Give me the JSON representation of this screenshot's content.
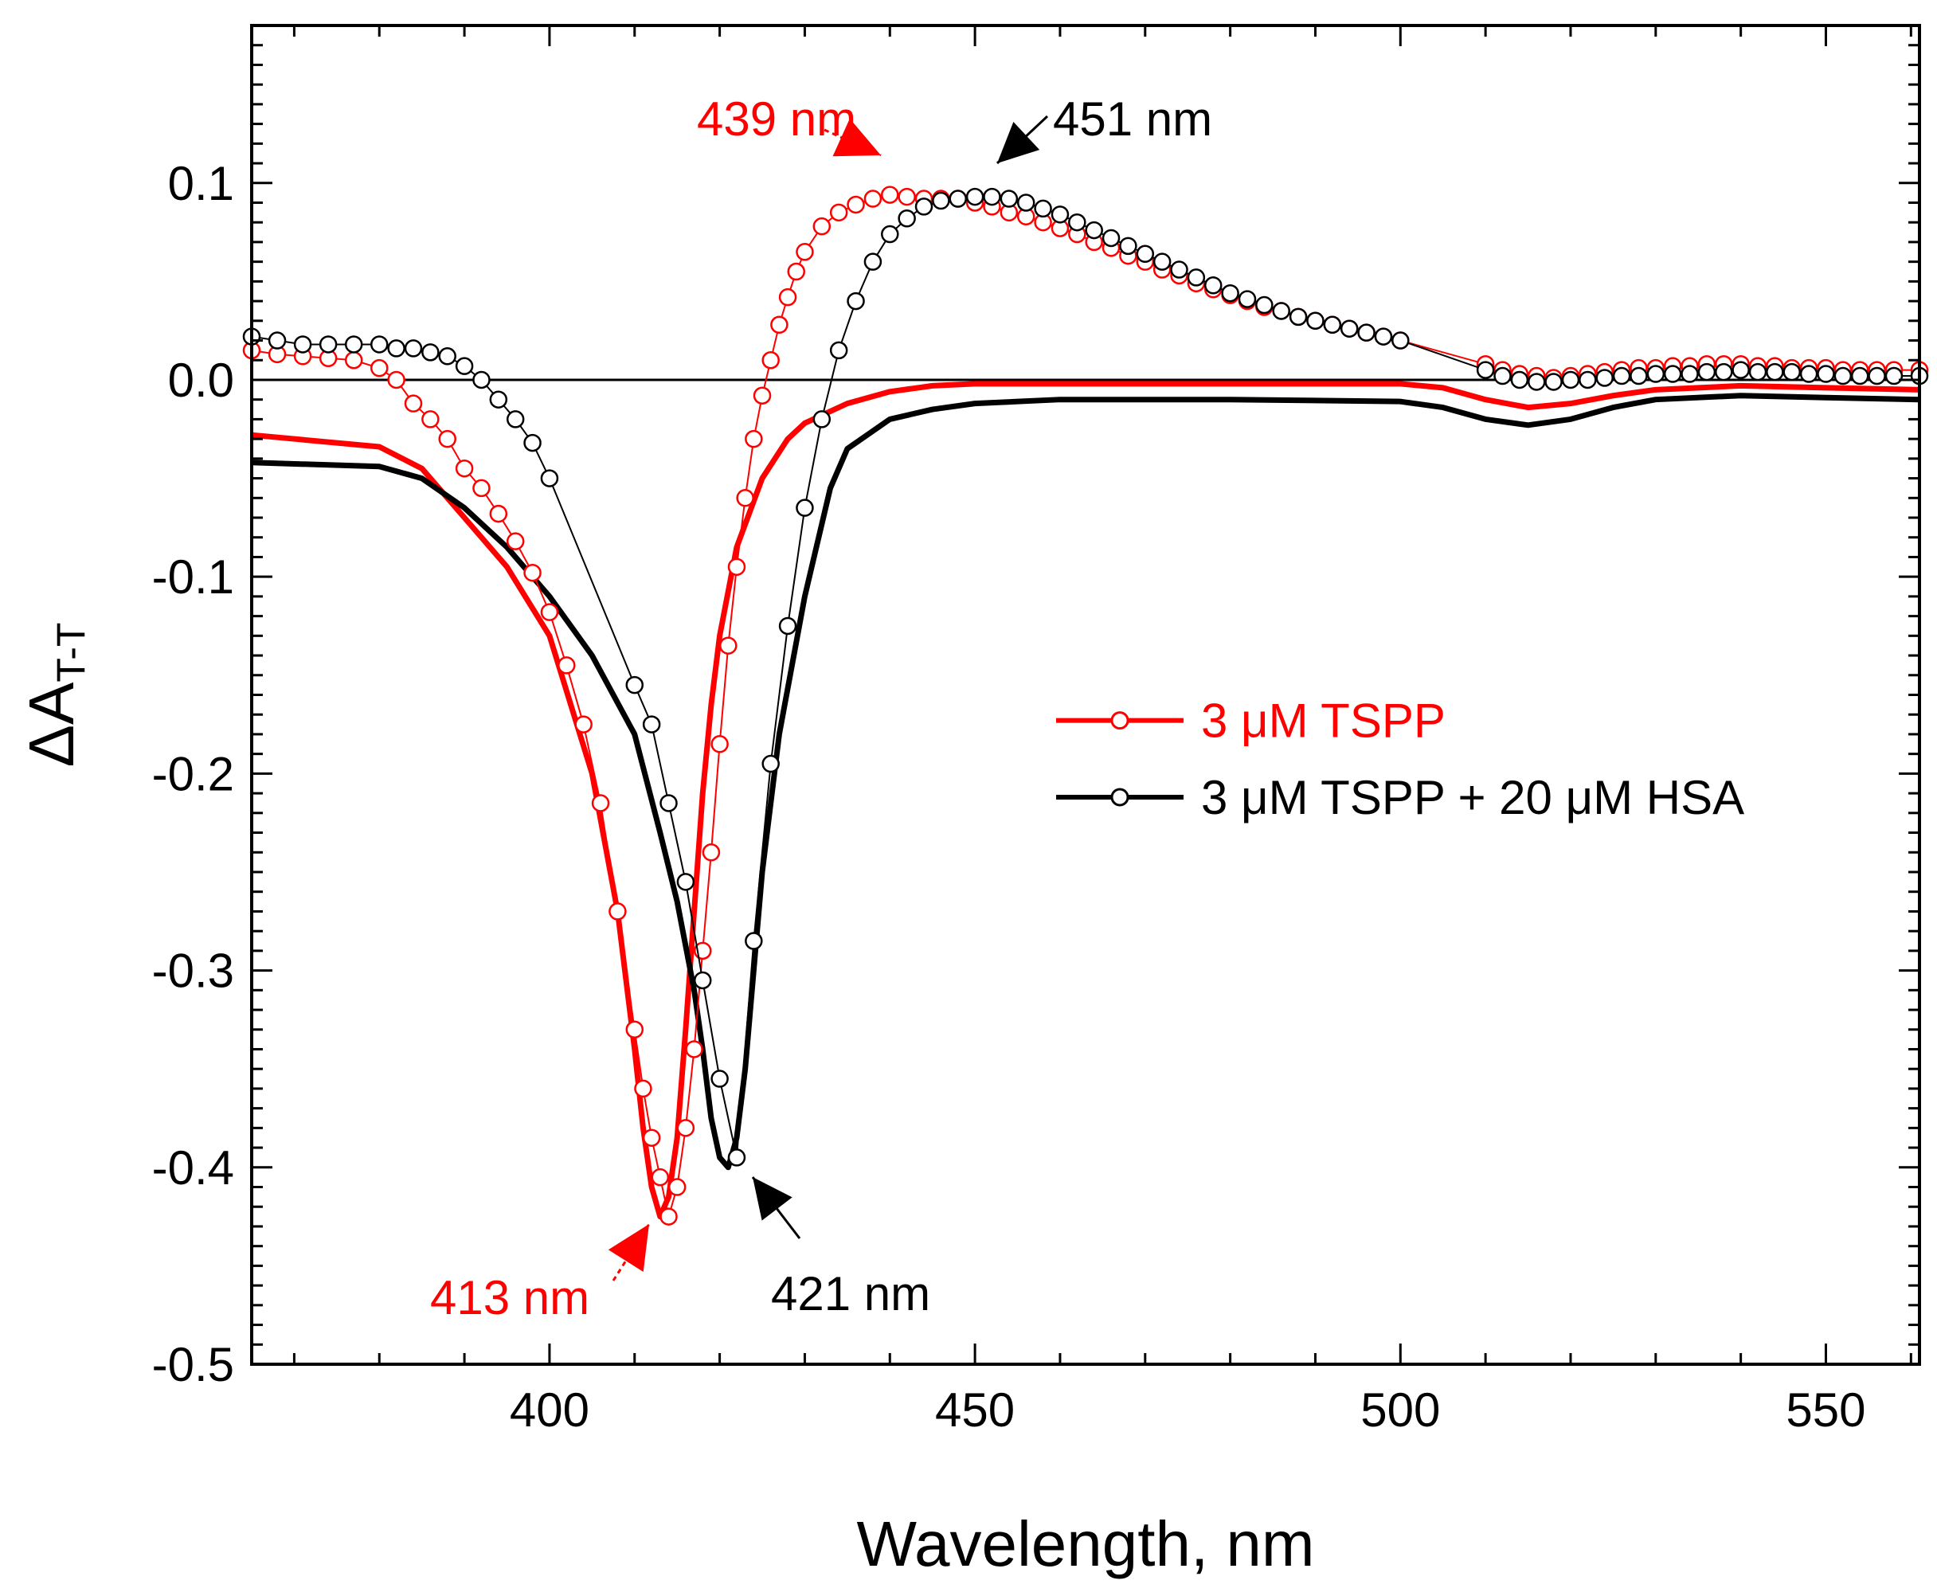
{
  "chart_data": {
    "type": "line",
    "xlabel": "Wavelength, nm",
    "ylabel_main": "ΔA",
    "ylabel_sub": "T-T",
    "xlim": [
      365,
      561
    ],
    "ylim": [
      -0.5,
      0.18
    ],
    "xticks": [
      400,
      450,
      500,
      550
    ],
    "yticks": [
      -0.5,
      -0.4,
      -0.3,
      -0.2,
      -0.1,
      0.0,
      0.1
    ],
    "xtick_labels": [
      "400",
      "450",
      "500",
      "550"
    ],
    "ytick_labels": [
      "-0.5",
      "-0.4",
      "-0.3",
      "-0.2",
      "-0.1",
      "0.0",
      "0.1"
    ],
    "grid": false,
    "legend_position": "right-center",
    "colors": {
      "tspp": "#ff0000",
      "hsa": "#000000",
      "zero_line": "#000000"
    },
    "series": [
      {
        "name": "3 μM TSPP (solid)",
        "style": "solid",
        "color": "#ff0000",
        "x": [
          365,
          380,
          385,
          390,
          395,
          400,
          405,
          408,
          410,
          411,
          412,
          413,
          414,
          415,
          416,
          417,
          418,
          419,
          420,
          422,
          425,
          428,
          430,
          435,
          440,
          445,
          450,
          460,
          480,
          500,
          505,
          510,
          515,
          520,
          525,
          530,
          540,
          550,
          561
        ],
        "y": [
          -0.028,
          -0.034,
          -0.045,
          -0.07,
          -0.095,
          -0.13,
          -0.2,
          -0.27,
          -0.34,
          -0.38,
          -0.41,
          -0.425,
          -0.415,
          -0.385,
          -0.33,
          -0.27,
          -0.21,
          -0.165,
          -0.13,
          -0.085,
          -0.05,
          -0.03,
          -0.022,
          -0.012,
          -0.006,
          -0.003,
          -0.002,
          -0.002,
          -0.002,
          -0.002,
          -0.004,
          -0.01,
          -0.014,
          -0.012,
          -0.008,
          -0.005,
          -0.003,
          -0.004,
          -0.005
        ]
      },
      {
        "name": "3 μM TSPP + 20 μM HSA (solid)",
        "style": "solid",
        "color": "#000000",
        "x": [
          365,
          380,
          385,
          390,
          395,
          400,
          405,
          410,
          413,
          415,
          417,
          418,
          419,
          420,
          421,
          422,
          423,
          424,
          425,
          427,
          430,
          433,
          435,
          440,
          445,
          450,
          460,
          480,
          500,
          505,
          510,
          515,
          520,
          525,
          530,
          540,
          550,
          561
        ],
        "y": [
          -0.042,
          -0.044,
          -0.05,
          -0.065,
          -0.085,
          -0.11,
          -0.14,
          -0.18,
          -0.23,
          -0.265,
          -0.31,
          -0.34,
          -0.375,
          -0.395,
          -0.4,
          -0.385,
          -0.35,
          -0.3,
          -0.25,
          -0.18,
          -0.11,
          -0.055,
          -0.035,
          -0.02,
          -0.015,
          -0.012,
          -0.01,
          -0.01,
          -0.011,
          -0.014,
          -0.02,
          -0.023,
          -0.02,
          -0.014,
          -0.01,
          -0.008,
          -0.009,
          -0.01
        ]
      },
      {
        "name": "3 μM TSPP",
        "style": "markers",
        "color": "#ff0000",
        "x": [
          365,
          368,
          371,
          374,
          377,
          380,
          382,
          384,
          386,
          388,
          390,
          392,
          394,
          396,
          398,
          400,
          402,
          404,
          406,
          408,
          410,
          411,
          412,
          413,
          414,
          415,
          416,
          417,
          418,
          419,
          420,
          421,
          422,
          423,
          424,
          425,
          426,
          427,
          428,
          429,
          430,
          432,
          434,
          436,
          438,
          440,
          442,
          444,
          446,
          448,
          450,
          452,
          454,
          456,
          458,
          460,
          462,
          464,
          466,
          468,
          470,
          472,
          474,
          476,
          478,
          480,
          482,
          484,
          486,
          488,
          490,
          492,
          494,
          496,
          498,
          500,
          510,
          512,
          514,
          516,
          518,
          520,
          522,
          524,
          526,
          528,
          530,
          532,
          534,
          536,
          538,
          540,
          542,
          544,
          546,
          548,
          550,
          552,
          554,
          556,
          558,
          561
        ],
        "y": [
          0.015,
          0.013,
          0.012,
          0.011,
          0.01,
          0.006,
          0.0,
          -0.012,
          -0.02,
          -0.03,
          -0.045,
          -0.055,
          -0.068,
          -0.082,
          -0.098,
          -0.118,
          -0.145,
          -0.175,
          -0.215,
          -0.27,
          -0.33,
          -0.36,
          -0.385,
          -0.405,
          -0.425,
          -0.41,
          -0.38,
          -0.34,
          -0.29,
          -0.24,
          -0.185,
          -0.135,
          -0.095,
          -0.06,
          -0.03,
          -0.008,
          0.01,
          0.028,
          0.042,
          0.055,
          0.065,
          0.078,
          0.085,
          0.089,
          0.092,
          0.094,
          0.093,
          0.092,
          0.092,
          0.092,
          0.09,
          0.088,
          0.085,
          0.083,
          0.08,
          0.077,
          0.074,
          0.07,
          0.067,
          0.063,
          0.06,
          0.056,
          0.053,
          0.049,
          0.046,
          0.043,
          0.04,
          0.037,
          0.035,
          0.032,
          0.03,
          0.028,
          0.026,
          0.024,
          0.022,
          0.02,
          0.008,
          0.005,
          0.003,
          0.002,
          0.001,
          0.002,
          0.003,
          0.004,
          0.005,
          0.006,
          0.006,
          0.007,
          0.007,
          0.008,
          0.008,
          0.008,
          0.007,
          0.007,
          0.006,
          0.006,
          0.006,
          0.005,
          0.005,
          0.005,
          0.005,
          0.005
        ]
      },
      {
        "name": "3 μM TSPP + 20 μM HSA",
        "style": "markers",
        "color": "#000000",
        "x": [
          365,
          368,
          371,
          374,
          377,
          380,
          382,
          384,
          386,
          388,
          390,
          392,
          394,
          396,
          398,
          400,
          410,
          412,
          414,
          416,
          418,
          420,
          422,
          424,
          426,
          428,
          430,
          432,
          434,
          436,
          438,
          440,
          442,
          444,
          446,
          448,
          450,
          452,
          454,
          456,
          458,
          460,
          462,
          464,
          466,
          468,
          470,
          472,
          474,
          476,
          478,
          480,
          482,
          484,
          486,
          488,
          490,
          492,
          494,
          496,
          498,
          500,
          510,
          512,
          514,
          516,
          518,
          520,
          522,
          524,
          526,
          528,
          530,
          532,
          534,
          536,
          538,
          540,
          542,
          544,
          546,
          548,
          550,
          552,
          554,
          556,
          558,
          561
        ],
        "y": [
          0.022,
          0.02,
          0.018,
          0.018,
          0.018,
          0.018,
          0.016,
          0.016,
          0.014,
          0.012,
          0.007,
          0.0,
          -0.01,
          -0.02,
          -0.032,
          -0.05,
          -0.155,
          -0.175,
          -0.215,
          -0.255,
          -0.305,
          -0.355,
          -0.395,
          -0.285,
          -0.195,
          -0.125,
          -0.065,
          -0.02,
          0.015,
          0.04,
          0.06,
          0.074,
          0.082,
          0.088,
          0.091,
          0.092,
          0.093,
          0.093,
          0.092,
          0.09,
          0.087,
          0.084,
          0.08,
          0.076,
          0.072,
          0.068,
          0.064,
          0.06,
          0.056,
          0.052,
          0.048,
          0.044,
          0.041,
          0.038,
          0.035,
          0.032,
          0.03,
          0.028,
          0.026,
          0.024,
          0.022,
          0.02,
          0.005,
          0.002,
          0.0,
          -0.001,
          -0.001,
          0.0,
          0.0,
          0.001,
          0.002,
          0.002,
          0.003,
          0.003,
          0.003,
          0.004,
          0.004,
          0.005,
          0.004,
          0.004,
          0.004,
          0.003,
          0.003,
          0.002,
          0.002,
          0.002,
          0.002,
          0.002
        ]
      }
    ],
    "legend": [
      {
        "label": "3 μM TSPP",
        "color": "#ff0000"
      },
      {
        "label": "3 μM TSPP + 20 μM HSA",
        "color": "#000000"
      }
    ],
    "annotations": [
      {
        "text": "439 nm",
        "color": "#ff0000",
        "target_x": 439,
        "target_y": 0.094
      },
      {
        "text": "451 nm",
        "color": "#000000",
        "target_x": 451,
        "target_y": 0.093
      },
      {
        "text": "413 nm",
        "color": "#ff0000",
        "target_x": 413,
        "target_y": -0.425
      },
      {
        "text": "421 nm",
        "color": "#000000",
        "target_x": 421,
        "target_y": -0.4
      }
    ]
  }
}
